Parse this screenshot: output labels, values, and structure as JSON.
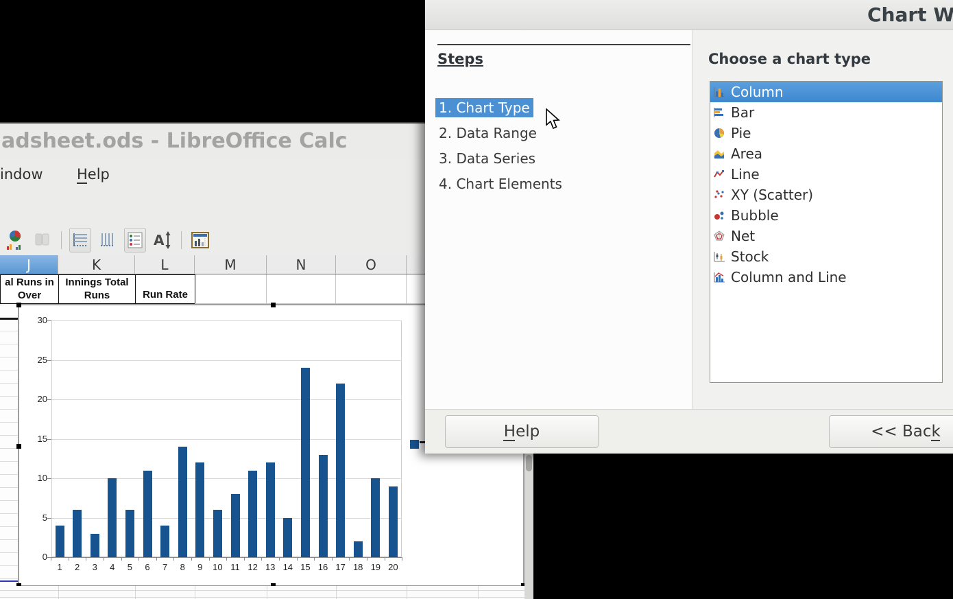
{
  "calc": {
    "window_title": "adsheet.ods - LibreOffice Calc",
    "menu": [
      "indow",
      "Help"
    ],
    "toolbar_icons": [
      "chart-type-icon",
      "clone-formatting-icon",
      "horizontal-grids-icon",
      "vertical-grids-icon",
      "legend-on-off-icon",
      "scale-text-icon",
      "data-table-icon"
    ],
    "column_headers": [
      "J",
      "K",
      "L",
      "M",
      "N",
      "O"
    ],
    "selected_column": "J",
    "cells": {
      "j_header": [
        "al Runs in",
        "Over"
      ],
      "k_header": [
        "Innings Total",
        "Runs"
      ],
      "l_header": [
        "Run Rate"
      ]
    }
  },
  "chart_data": {
    "type": "bar",
    "title": "",
    "xlabel": "",
    "ylabel": "",
    "categories": [
      "1",
      "2",
      "3",
      "4",
      "5",
      "6",
      "7",
      "8",
      "9",
      "10",
      "11",
      "12",
      "13",
      "14",
      "15",
      "16",
      "17",
      "18",
      "19",
      "20"
    ],
    "values": [
      4,
      6,
      3,
      10,
      6,
      11,
      4,
      14,
      12,
      6,
      8,
      11,
      12,
      5,
      24,
      13,
      22,
      2,
      10,
      9
    ],
    "yticks": [
      0,
      5,
      10,
      15,
      20,
      25,
      30
    ],
    "ylim": [
      0,
      30
    ],
    "series_color": "#17538f",
    "grid": "horizontal",
    "legend_position": "right"
  },
  "dialog": {
    "title": "Chart W",
    "steps_heading": "Steps",
    "steps": [
      "1. Chart Type",
      "2. Data Range",
      "3. Data Series",
      "4. Chart Elements"
    ],
    "selected_step": "1. Chart Type",
    "choose_heading": "Choose a chart type",
    "chart_types": [
      "Column",
      "Bar",
      "Pie",
      "Area",
      "Line",
      "XY (Scatter)",
      "Bubble",
      "Net",
      "Stock",
      "Column and Line"
    ],
    "selected_chart_type": "Column",
    "buttons": {
      "help": "Help",
      "back": "<< Back"
    },
    "accent_color": "#4a90d2"
  }
}
